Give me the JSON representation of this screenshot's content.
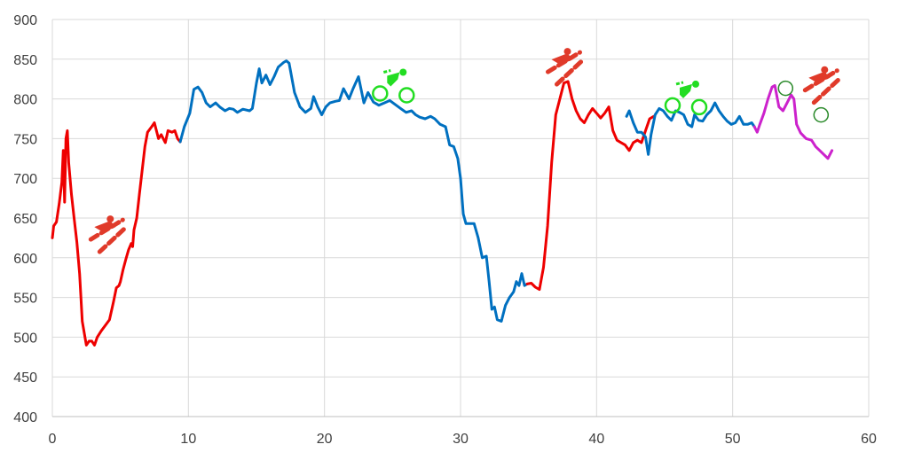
{
  "chart_data": {
    "type": "line",
    "title": "",
    "xlabel": "",
    "ylabel": "",
    "xlim": [
      0,
      60
    ],
    "ylim": [
      400,
      900
    ],
    "x_ticks": [
      "0",
      "10",
      "20",
      "30",
      "40",
      "50",
      "60"
    ],
    "y_ticks": [
      "400",
      "450",
      "500",
      "550",
      "600",
      "650",
      "700",
      "750",
      "800",
      "850",
      "900"
    ],
    "grid": true,
    "legend": "none",
    "series": [
      {
        "color": "#ee0000",
        "points": [
          [
            0.0,
            625
          ],
          [
            0.1,
            640
          ],
          [
            0.3,
            645
          ],
          [
            0.5,
            668
          ],
          [
            0.7,
            695
          ],
          [
            0.8,
            735
          ],
          [
            0.9,
            670
          ],
          [
            1.0,
            750
          ],
          [
            1.1,
            760
          ],
          [
            1.2,
            720
          ],
          [
            1.4,
            680
          ],
          [
            1.6,
            650
          ],
          [
            1.8,
            620
          ],
          [
            2.0,
            580
          ],
          [
            2.2,
            520
          ],
          [
            2.5,
            490
          ],
          [
            2.7,
            495
          ],
          [
            2.9,
            495
          ],
          [
            3.1,
            490
          ],
          [
            3.3,
            500
          ],
          [
            3.6,
            508
          ],
          [
            3.9,
            515
          ],
          [
            4.2,
            522
          ],
          [
            4.5,
            545
          ],
          [
            4.7,
            562
          ],
          [
            4.9,
            565
          ],
          [
            5.0,
            570
          ],
          [
            5.2,
            585
          ],
          [
            5.4,
            598
          ],
          [
            5.6,
            610
          ],
          [
            5.8,
            618
          ],
          [
            5.9,
            614
          ],
          [
            6.0,
            635
          ],
          [
            6.2,
            650
          ],
          [
            6.4,
            680
          ],
          [
            6.6,
            710
          ],
          [
            6.8,
            740
          ],
          [
            7.0,
            758
          ],
          [
            7.3,
            765
          ],
          [
            7.5,
            770
          ],
          [
            7.8,
            750
          ],
          [
            8.0,
            755
          ],
          [
            8.3,
            745
          ],
          [
            8.5,
            760
          ],
          [
            8.8,
            758
          ],
          [
            9.0,
            760
          ],
          [
            9.2,
            750
          ],
          [
            9.4,
            746
          ]
        ]
      },
      {
        "color": "#0070c0",
        "points": [
          [
            9.4,
            746
          ],
          [
            9.7,
            765
          ],
          [
            10.1,
            782
          ],
          [
            10.4,
            812
          ],
          [
            10.7,
            815
          ],
          [
            11.0,
            808
          ],
          [
            11.3,
            795
          ],
          [
            11.6,
            790
          ],
          [
            12.0,
            795
          ],
          [
            12.3,
            790
          ],
          [
            12.7,
            785
          ],
          [
            13.0,
            788
          ],
          [
            13.3,
            787
          ],
          [
            13.6,
            783
          ],
          [
            14.0,
            787
          ],
          [
            14.5,
            785
          ],
          [
            14.7,
            788
          ],
          [
            15.0,
            820
          ],
          [
            15.2,
            838
          ],
          [
            15.4,
            820
          ],
          [
            15.7,
            830
          ],
          [
            16.0,
            818
          ],
          [
            16.3,
            828
          ],
          [
            16.6,
            840
          ],
          [
            17.0,
            846
          ],
          [
            17.2,
            848
          ],
          [
            17.4,
            845
          ],
          [
            17.8,
            808
          ],
          [
            18.2,
            790
          ],
          [
            18.6,
            783
          ],
          [
            19.0,
            788
          ],
          [
            19.2,
            803
          ],
          [
            19.5,
            790
          ],
          [
            19.8,
            780
          ],
          [
            20.1,
            790
          ],
          [
            20.4,
            795
          ],
          [
            20.8,
            797
          ],
          [
            21.1,
            798
          ],
          [
            21.4,
            813
          ],
          [
            21.8,
            800
          ],
          [
            22.1,
            813
          ],
          [
            22.5,
            828
          ],
          [
            22.9,
            795
          ],
          [
            23.2,
            808
          ],
          [
            23.6,
            796
          ],
          [
            24.0,
            792
          ],
          [
            24.4,
            795
          ],
          [
            24.8,
            798
          ],
          [
            25.2,
            793
          ],
          [
            25.6,
            788
          ],
          [
            26.0,
            783
          ],
          [
            26.4,
            785
          ],
          [
            26.7,
            780
          ],
          [
            27.0,
            777
          ],
          [
            27.4,
            775
          ],
          [
            27.8,
            778
          ],
          [
            28.1,
            775
          ],
          [
            28.5,
            768
          ],
          [
            28.9,
            765
          ],
          [
            29.2,
            742
          ],
          [
            29.5,
            740
          ],
          [
            29.8,
            725
          ],
          [
            30.0,
            700
          ],
          [
            30.2,
            655
          ],
          [
            30.4,
            643
          ],
          [
            30.7,
            643
          ],
          [
            31.0,
            643
          ],
          [
            31.3,
            625
          ],
          [
            31.6,
            600
          ],
          [
            31.9,
            602
          ],
          [
            32.1,
            570
          ],
          [
            32.3,
            535
          ],
          [
            32.5,
            538
          ],
          [
            32.7,
            522
          ],
          [
            33.0,
            520
          ],
          [
            33.3,
            540
          ],
          [
            33.6,
            550
          ],
          [
            33.9,
            557
          ],
          [
            34.1,
            570
          ],
          [
            34.3,
            565
          ],
          [
            34.5,
            580
          ],
          [
            34.7,
            565
          ],
          [
            34.9,
            567
          ]
        ]
      },
      {
        "color": "#ee0000",
        "points": [
          [
            34.9,
            567
          ],
          [
            35.2,
            568
          ],
          [
            35.5,
            563
          ],
          [
            35.8,
            560
          ],
          [
            36.1,
            588
          ],
          [
            36.4,
            640
          ],
          [
            36.7,
            720
          ],
          [
            37.0,
            780
          ],
          [
            37.3,
            800
          ],
          [
            37.6,
            820
          ],
          [
            37.9,
            822
          ],
          [
            38.2,
            800
          ],
          [
            38.5,
            785
          ],
          [
            38.8,
            775
          ],
          [
            39.1,
            770
          ],
          [
            39.4,
            780
          ],
          [
            39.7,
            788
          ],
          [
            40.0,
            782
          ],
          [
            40.3,
            776
          ],
          [
            40.6,
            782
          ],
          [
            40.9,
            790
          ],
          [
            41.2,
            760
          ],
          [
            41.5,
            748
          ],
          [
            41.8,
            745
          ],
          [
            42.1,
            742
          ],
          [
            42.4,
            735
          ],
          [
            42.7,
            745
          ],
          [
            43.0,
            748
          ],
          [
            43.3,
            745
          ],
          [
            43.6,
            760
          ],
          [
            43.9,
            775
          ],
          [
            44.2,
            778
          ]
        ]
      },
      {
        "color": "#0070c0",
        "points": [
          [
            42.2,
            778
          ],
          [
            42.4,
            785
          ],
          [
            42.7,
            770
          ],
          [
            43.0,
            758
          ],
          [
            43.3,
            758
          ],
          [
            43.6,
            752
          ],
          [
            43.8,
            730
          ],
          [
            44.0,
            755
          ],
          [
            44.3,
            780
          ],
          [
            44.6,
            788
          ],
          [
            44.9,
            785
          ],
          [
            45.2,
            778
          ],
          [
            45.5,
            773
          ],
          [
            45.8,
            785
          ],
          [
            46.1,
            783
          ],
          [
            46.4,
            780
          ],
          [
            46.7,
            768
          ],
          [
            47.0,
            765
          ],
          [
            47.2,
            780
          ],
          [
            47.5,
            773
          ],
          [
            47.8,
            772
          ],
          [
            48.1,
            780
          ],
          [
            48.4,
            785
          ],
          [
            48.7,
            795
          ],
          [
            49.0,
            785
          ],
          [
            49.3,
            778
          ],
          [
            49.6,
            772
          ],
          [
            49.9,
            768
          ],
          [
            50.2,
            770
          ],
          [
            50.5,
            778
          ],
          [
            50.8,
            768
          ],
          [
            51.1,
            768
          ],
          [
            51.4,
            770
          ],
          [
            51.6,
            765
          ]
        ]
      },
      {
        "color": "#cc22cc",
        "points": [
          [
            51.6,
            765
          ],
          [
            51.8,
            758
          ],
          [
            52.0,
            768
          ],
          [
            52.3,
            782
          ],
          [
            52.6,
            800
          ],
          [
            52.9,
            815
          ],
          [
            53.1,
            817
          ],
          [
            53.4,
            790
          ],
          [
            53.7,
            785
          ],
          [
            54.0,
            795
          ],
          [
            54.3,
            805
          ],
          [
            54.5,
            800
          ],
          [
            54.7,
            768
          ],
          [
            55.0,
            757
          ],
          [
            55.4,
            750
          ],
          [
            55.8,
            748
          ],
          [
            56.1,
            740
          ],
          [
            56.4,
            735
          ],
          [
            56.7,
            730
          ],
          [
            57.0,
            725
          ],
          [
            57.3,
            735
          ]
        ]
      }
    ],
    "icons": [
      {
        "name": "runner-icon",
        "color": "#e03a2a",
        "x": 4.0,
        "y": 632
      },
      {
        "name": "cyclist-icon",
        "color": "#22dd22",
        "x": 25.0,
        "y": 818
      },
      {
        "name": "runner-icon",
        "color": "#e03a2a",
        "x": 37.6,
        "y": 843
      },
      {
        "name": "cyclist-icon",
        "color": "#22dd22",
        "x": 46.5,
        "y": 803
      },
      {
        "name": "runner-icon",
        "color": "#e03a2a",
        "x": 56.5,
        "y": 820
      },
      {
        "name": "cyclist-outline-icon",
        "color": "#2a8a2a",
        "x": 56.5,
        "y": 800
      }
    ]
  }
}
